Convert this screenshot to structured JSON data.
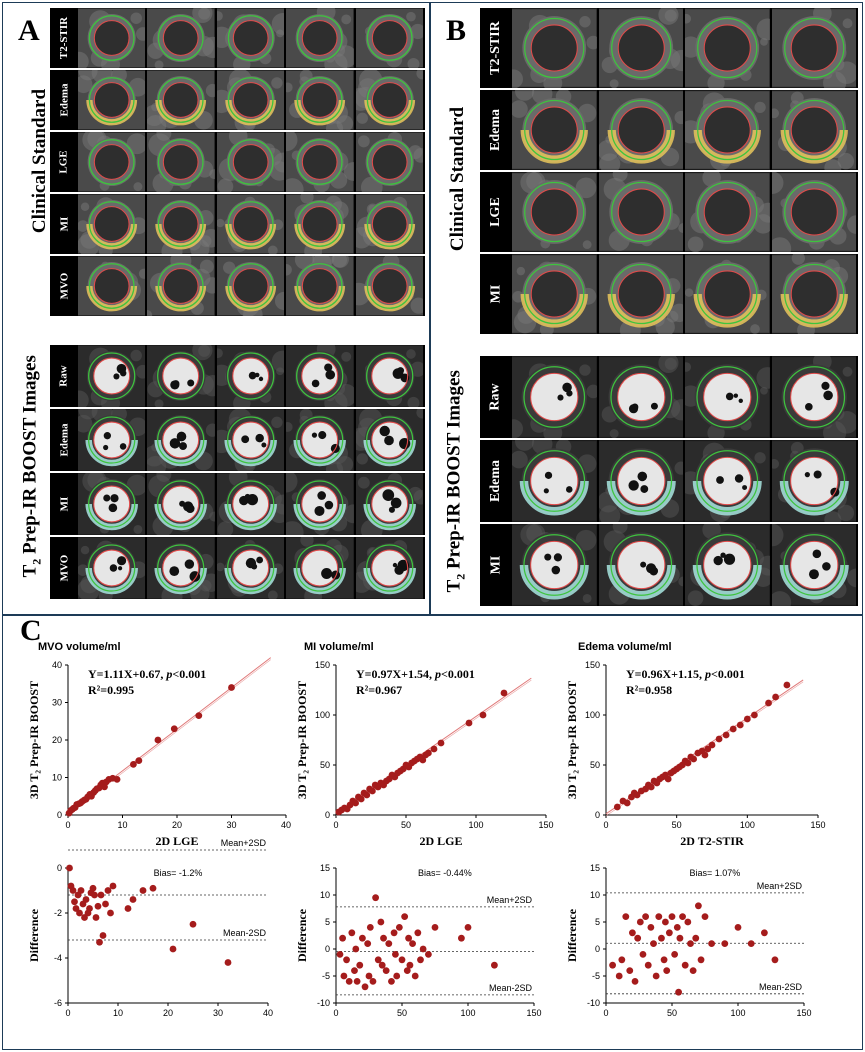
{
  "panels": {
    "A": {
      "letter": "A",
      "group1_title": "Clinical Standard",
      "group1_rows": [
        "T2-STIR",
        "Edema",
        "LGE",
        "MI",
        "MVO"
      ],
      "group2_title_main": "T",
      "group2_title_sub": "2",
      "group2_title_rest": " Prep-IR BOOST Images",
      "group2_rows": [
        "Raw",
        "Edema",
        "MI",
        "MVO"
      ]
    },
    "B": {
      "letter": "B",
      "group1_title": "Clinical Standard",
      "group1_rows": [
        "T2-STIR",
        "Edema",
        "LGE",
        "MI"
      ],
      "group2_title_main": "T",
      "group2_title_sub": "2",
      "group2_title_rest": " Prep-IR BOOST Images",
      "group2_rows": [
        "Raw",
        "Edema",
        "MI"
      ]
    },
    "C": {
      "letter": "C"
    }
  },
  "colors": {
    "frame": "#1d3b57",
    "marker": "#a51c1c",
    "fit_line": "#e07a7a",
    "contour_epi": "#3ec43e",
    "contour_endo": "#e04a4a",
    "edema": "#e8c65a",
    "boost_edema": "#a8e6e0"
  },
  "chart_data": [
    {
      "type": "scatter",
      "title": "MVO volume/ml",
      "equation_prefix": "Y=1.11X+0.67, ",
      "p_label": "p",
      "p_rest": "<0.001",
      "r2": "R²=0.995",
      "xlabel": "2D LGE",
      "ylabel": "3D  T₂ Prep-IR BOOST",
      "xlim": [
        0,
        40
      ],
      "ylim": [
        0,
        40
      ],
      "xticks": [
        0,
        10,
        20,
        30,
        40
      ],
      "yticks": [
        0,
        10,
        20,
        30,
        40
      ],
      "fit": {
        "slope": 1.11,
        "intercept": 0.67
      },
      "x": [
        0.2,
        0.5,
        0.8,
        1.0,
        1.3,
        1.6,
        2.0,
        2.3,
        2.6,
        3.0,
        3.3,
        3.6,
        4.0,
        4.3,
        4.7,
        5.0,
        5.3,
        5.7,
        6.0,
        6.3,
        6.7,
        7.0,
        7.5,
        8.2,
        9.0,
        12.0,
        13.0,
        16.5,
        19.5,
        24.0,
        30.0
      ],
      "y": [
        0.5,
        1.2,
        1.5,
        1.8,
        2.0,
        2.8,
        3.0,
        3.2,
        3.6,
        4.0,
        4.2,
        4.8,
        5.5,
        5.0,
        6.0,
        6.5,
        7.0,
        7.2,
        8.0,
        8.5,
        7.5,
        8.8,
        9.5,
        9.8,
        9.5,
        13.5,
        14.5,
        20.0,
        23.0,
        26.5,
        34.0
      ]
    },
    {
      "type": "scatter",
      "title": "MI volume/ml",
      "equation_prefix": "Y=0.97X+1.54, ",
      "p_label": "p",
      "p_rest": "<0.001",
      "r2": "R²=0.967",
      "xlabel": "2D LGE",
      "ylabel": "3D  T₂ Prep-IR BOOST",
      "xlim": [
        0,
        150
      ],
      "ylim": [
        0,
        150
      ],
      "xticks": [
        0,
        50,
        100,
        150
      ],
      "yticks": [
        0,
        50,
        100,
        150
      ],
      "fit": {
        "slope": 0.97,
        "intercept": 1.54
      },
      "x": [
        2,
        4,
        6,
        8,
        10,
        12,
        14,
        16,
        18,
        20,
        22,
        24,
        26,
        28,
        30,
        32,
        34,
        36,
        38,
        40,
        42,
        44,
        46,
        48,
        50,
        52,
        54,
        56,
        58,
        60,
        62,
        64,
        66,
        70,
        75,
        95,
        105,
        120
      ],
      "y": [
        3,
        5,
        7,
        6,
        10,
        14,
        12,
        18,
        16,
        22,
        20,
        26,
        24,
        30,
        28,
        32,
        30,
        34,
        36,
        40,
        38,
        42,
        44,
        46,
        50,
        48,
        52,
        54,
        56,
        58,
        55,
        60,
        62,
        66,
        72,
        92,
        100,
        122
      ]
    },
    {
      "type": "scatter",
      "title": "Edema volume/ml",
      "equation_prefix": "Y=0.96X+1.15, ",
      "p_label": "p",
      "p_rest": "<0.001",
      "r2": "R²=0.958",
      "xlabel": "2D T2-STIR",
      "ylabel": "3D  T₂ Prep-IR BOOST",
      "xlim": [
        0,
        150
      ],
      "ylim": [
        0,
        150
      ],
      "xticks": [
        0,
        50,
        100,
        150
      ],
      "yticks": [
        0,
        50,
        100,
        150
      ],
      "fit": {
        "slope": 0.96,
        "intercept": 1.15
      },
      "x": [
        8,
        12,
        15,
        18,
        20,
        22,
        25,
        28,
        30,
        32,
        34,
        36,
        38,
        40,
        42,
        44,
        46,
        48,
        50,
        52,
        54,
        56,
        58,
        60,
        62,
        65,
        68,
        70,
        72,
        75,
        80,
        85,
        90,
        95,
        100,
        105,
        115,
        120,
        128
      ],
      "y": [
        8,
        14,
        12,
        18,
        22,
        20,
        24,
        26,
        30,
        28,
        34,
        32,
        36,
        38,
        40,
        36,
        42,
        44,
        46,
        48,
        50,
        54,
        52,
        58,
        56,
        62,
        64,
        60,
        66,
        70,
        76,
        80,
        86,
        90,
        96,
        100,
        112,
        118,
        130
      ]
    },
    {
      "type": "scatter",
      "title": "",
      "bias_label": "Bias= -1.2%",
      "upper_label": "Mean+2SD",
      "lower_label": "Mean-2SD",
      "ylabel": "Difference",
      "xlim": [
        0,
        40
      ],
      "ylim": [
        -6,
        0
      ],
      "xticks": [
        0,
        10,
        20,
        30,
        40
      ],
      "yticks": [
        -6,
        -4,
        -2,
        0
      ],
      "bias": -1.2,
      "upper": 0.8,
      "lower": -3.2,
      "x": [
        0.3,
        0.6,
        1.0,
        1.3,
        1.6,
        2.0,
        2.3,
        2.6,
        3.0,
        3.3,
        3.6,
        4.0,
        4.3,
        4.6,
        5.0,
        5.3,
        5.6,
        6.0,
        6.3,
        6.6,
        7.0,
        7.5,
        8.0,
        8.5,
        9.0,
        12.0,
        13.0,
        15.0,
        17.0,
        21.0,
        25.0,
        32.0
      ],
      "y": [
        0.0,
        -0.8,
        -1.0,
        -1.5,
        -1.8,
        -1.2,
        -2.0,
        -1.0,
        -1.6,
        -2.2,
        -1.4,
        -2.0,
        -1.8,
        -1.1,
        -0.9,
        -1.2,
        -2.2,
        -1.7,
        -3.3,
        -1.2,
        -3.0,
        -1.6,
        -1.0,
        -2.0,
        -0.8,
        -1.8,
        -1.4,
        -1.0,
        -0.9,
        -3.6,
        -2.5,
        -4.2
      ]
    },
    {
      "type": "scatter",
      "title": "",
      "bias_label": "Bias= -0.44%",
      "upper_label": "Mean+2SD",
      "lower_label": "Mean-2SD",
      "ylabel": "Difference",
      "xlim": [
        0,
        150
      ],
      "ylim": [
        -10,
        15
      ],
      "xticks": [
        0,
        50,
        100,
        150
      ],
      "yticks": [
        -10,
        -5,
        0,
        5,
        10,
        15
      ],
      "bias": -0.44,
      "upper": 7.8,
      "lower": -8.5,
      "x": [
        3,
        5,
        6,
        8,
        10,
        12,
        14,
        15,
        16,
        18,
        20,
        22,
        24,
        25,
        26,
        28,
        30,
        32,
        34,
        35,
        36,
        38,
        40,
        42,
        44,
        45,
        46,
        48,
        50,
        52,
        54,
        55,
        56,
        58,
        60,
        62,
        64,
        66,
        70,
        75,
        95,
        100,
        120
      ],
      "y": [
        -1,
        2,
        -5,
        -2,
        -6,
        3,
        -4,
        0,
        -6,
        -3,
        2,
        -7,
        1,
        -5,
        4,
        -6,
        9.5,
        -2,
        5,
        -3,
        2,
        -4,
        1,
        -6,
        3,
        -1,
        -5,
        4,
        -2,
        6,
        -4,
        2,
        -3,
        1,
        -5,
        3,
        -2,
        0,
        -1,
        4,
        2,
        4,
        -3
      ]
    },
    {
      "type": "scatter",
      "title": "",
      "bias_label": "Bias= 1.07%",
      "upper_label": "Mean+2SD",
      "lower_label": "Mean-2SD",
      "ylabel": "Difference",
      "xlim": [
        0,
        150
      ],
      "ylim": [
        -10,
        15
      ],
      "xticks": [
        0,
        50,
        100,
        150
      ],
      "yticks": [
        -10,
        -5,
        0,
        5,
        10,
        15
      ],
      "bias": 1.07,
      "upper": 10.4,
      "lower": -8.3,
      "x": [
        5,
        10,
        12,
        15,
        18,
        20,
        22,
        24,
        26,
        28,
        30,
        32,
        34,
        36,
        38,
        40,
        42,
        44,
        45,
        46,
        48,
        50,
        52,
        54,
        55,
        56,
        58,
        60,
        62,
        64,
        66,
        68,
        70,
        72,
        75,
        80,
        90,
        100,
        110,
        120,
        128
      ],
      "y": [
        -3,
        -5,
        -2,
        6,
        -4,
        3,
        -6,
        2,
        5,
        -1,
        6,
        -3,
        4,
        1,
        -5,
        6,
        2,
        -2,
        5,
        -4,
        3,
        6,
        -1,
        4,
        -8,
        2,
        6,
        -3,
        5,
        1,
        -4,
        2,
        8,
        -2,
        6,
        1,
        1,
        4,
        1,
        3,
        -2
      ]
    }
  ]
}
